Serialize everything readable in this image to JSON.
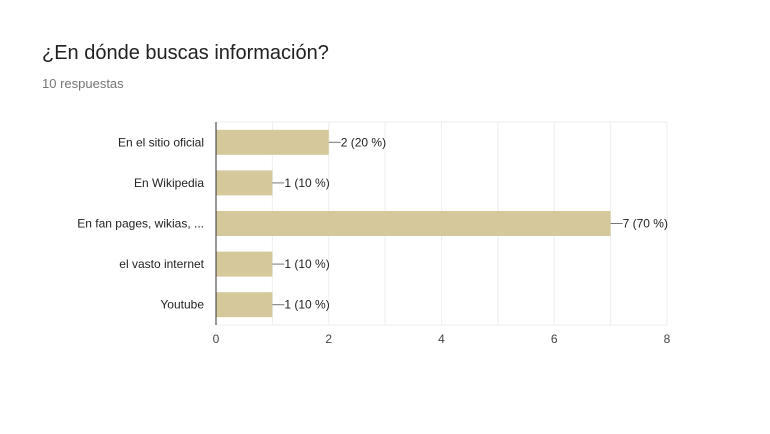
{
  "header": {
    "title": "¿En dónde buscas información?",
    "responses": "10 respuestas"
  },
  "chart_data": {
    "type": "bar",
    "orientation": "horizontal",
    "categories": [
      "En el sitio oficial",
      "En Wikipedia",
      "En fan pages, wikias, ...",
      "el vasto internet",
      "Youtube"
    ],
    "values": [
      2,
      1,
      7,
      1,
      1
    ],
    "data_labels": [
      "2 (20 %)",
      "1 (10 %)",
      "7 (70 %)",
      "1 (10 %)",
      "1 (10 %)"
    ],
    "xlim": [
      0,
      8
    ],
    "xticks": [
      0,
      2,
      4,
      6,
      8
    ],
    "bar_color": "#d5c99c",
    "grid": true
  }
}
